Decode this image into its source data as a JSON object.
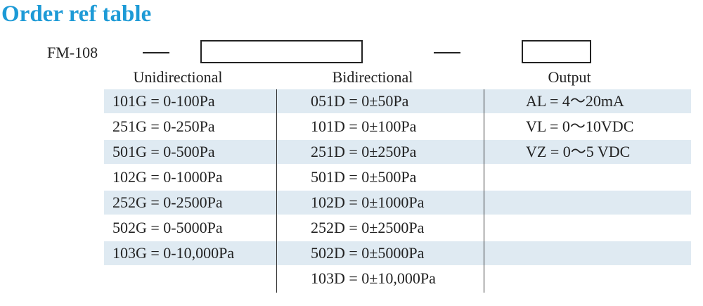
{
  "title": "Order ref table",
  "model": "FM-108",
  "columns": {
    "unidirectional": "Unidirectional",
    "bidirectional": "Bidirectional",
    "output": "Output"
  },
  "unidirectional": [
    "101G = 0-100Pa",
    "251G = 0-250Pa",
    "501G = 0-500Pa",
    "102G = 0-1000Pa",
    "252G = 0-2500Pa",
    "502G = 0-5000Pa",
    "103G = 0-10,000Pa"
  ],
  "bidirectional": [
    "051D = 0±50Pa",
    "101D = 0±100Pa",
    "251D = 0±250Pa",
    "501D = 0±500Pa",
    "102D = 0±1000Pa",
    "252D = 0±2500Pa",
    "502D = 0±5000Pa",
    "103D = 0±10,000Pa"
  ],
  "output": [
    "AL = 4～20mA",
    "VL = 0～10VDC",
    "VZ = 0～5 VDC"
  ],
  "colors": {
    "title": "#1d9ad6",
    "band": "#dfeaf2"
  }
}
